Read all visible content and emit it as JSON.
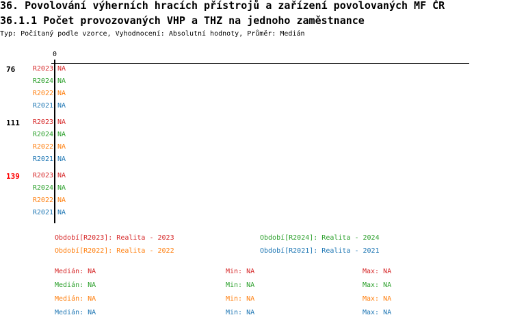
{
  "title": "36. Povolování výherních hracích přístrojů a zařízení povolovaných MF ČR",
  "subtitle": "36.1.1 Počet provozovaných VHP a THZ na jednoho zaměstnance",
  "info": "Typ: Počítaný podle vzorce, Vyhodnocení: Absolutní hodnoty, Průměr: Medián",
  "chart_data": {
    "type": "bar",
    "x_axis_tick": "0",
    "groups": [
      {
        "label": "76",
        "color": "#000000",
        "rows": [
          {
            "series": "R2023",
            "value": "NA"
          },
          {
            "series": "R2024",
            "value": "NA"
          },
          {
            "series": "R2022",
            "value": "NA"
          },
          {
            "series": "R2021",
            "value": "NA"
          }
        ]
      },
      {
        "label": "111",
        "color": "#000000",
        "rows": [
          {
            "series": "R2023",
            "value": "NA"
          },
          {
            "series": "R2024",
            "value": "NA"
          },
          {
            "series": "R2022",
            "value": "NA"
          },
          {
            "series": "R2021",
            "value": "NA"
          }
        ]
      },
      {
        "label": "139",
        "color": "#ff0000",
        "rows": [
          {
            "series": "R2023",
            "value": "NA"
          },
          {
            "series": "R2024",
            "value": "NA"
          },
          {
            "series": "R2022",
            "value": "NA"
          },
          {
            "series": "R2021",
            "value": "NA"
          }
        ]
      }
    ],
    "series_colors": {
      "R2023": "#d62728",
      "R2024": "#2ca02c",
      "R2022": "#ff7f0e",
      "R2021": "#1f77b4"
    },
    "legend": [
      {
        "text": "Období[R2023]: Realita - 2023",
        "color": "#d62728"
      },
      {
        "text": "Období[R2024]: Realita - 2024",
        "color": "#2ca02c"
      },
      {
        "text": "Období[R2022]: Realita - 2022",
        "color": "#ff7f0e"
      },
      {
        "text": "Období[R2021]: Realita - 2021",
        "color": "#1f77b4"
      }
    ],
    "stats": [
      {
        "color": "#d62728",
        "median": "Medián: NA",
        "min": "Min: NA",
        "max": "Max: NA"
      },
      {
        "color": "#2ca02c",
        "median": "Medián: NA",
        "min": "Min: NA",
        "max": "Max: NA"
      },
      {
        "color": "#ff7f0e",
        "median": "Medián: NA",
        "min": "Min: NA",
        "max": "Max: NA"
      },
      {
        "color": "#1f77b4",
        "median": "Medián: NA",
        "min": "Min: NA",
        "max": "Max: NA"
      }
    ]
  }
}
